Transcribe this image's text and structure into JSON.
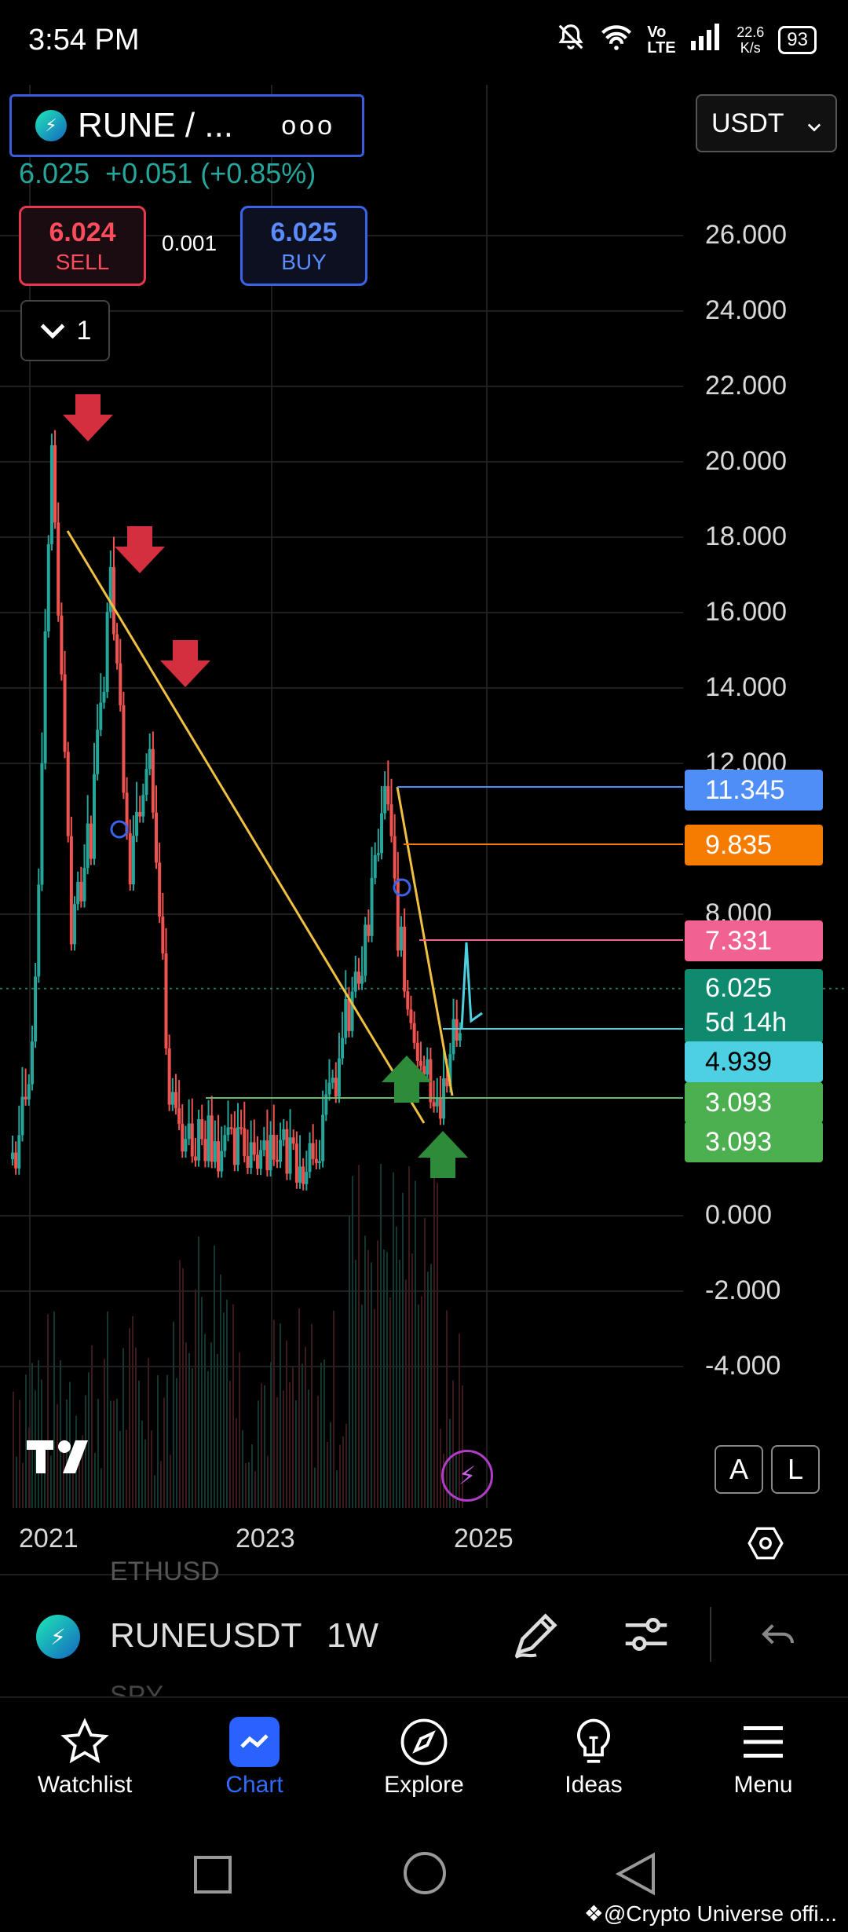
{
  "status_bar": {
    "time": "3:54 PM",
    "speed_value": "22.6",
    "speed_unit": "K/s",
    "network": "Vo LTE",
    "battery": "93"
  },
  "symbol": {
    "name": "RUNE / ...",
    "more": "ooo",
    "price": "6.025",
    "change": "+0.051 (+0.85%)"
  },
  "trade": {
    "sell_price": "6.024",
    "sell_label": "SELL",
    "spread": "0.001",
    "buy_price": "6.025",
    "buy_label": "BUY"
  },
  "collapse": {
    "count": "1"
  },
  "currency": {
    "selected": "USDT"
  },
  "chart_data": {
    "type": "line",
    "title": "",
    "y_ticks": [
      "26.000",
      "24.000",
      "22.000",
      "20.000",
      "18.000",
      "16.000",
      "14.000",
      "12.000",
      "8.000",
      "0.000",
      "-2.000",
      "-4.000"
    ],
    "x_ticks": [
      "2021",
      "2023",
      "2025"
    ],
    "ylim": [
      -6,
      28
    ],
    "series": [
      {
        "x": [
          "2021-01",
          "2021-03",
          "2021-05",
          "2021-07",
          "2021-09",
          "2021-11",
          "2022-01",
          "2022-03",
          "2022-05",
          "2022-07",
          "2022-09",
          "2022-11",
          "2023-01",
          "2023-03",
          "2023-05",
          "2023-07",
          "2023-09",
          "2023-11",
          "2024-01",
          "2024-03",
          "2024-05",
          "2024-07",
          "2024-09",
          "2024-11"
        ],
        "y": [
          1.5,
          4,
          20.5,
          8,
          10,
          17,
          9.5,
          13,
          3,
          2,
          2.3,
          1.6,
          1.8,
          2,
          1.7,
          1.6,
          2.5,
          5,
          7,
          11.3,
          6,
          4,
          3.1,
          6.025
        ]
      }
    ],
    "price_labels": [
      {
        "value": "11.345",
        "color": "#4f8ef7"
      },
      {
        "value": "9.835",
        "color": "#f57c00"
      },
      {
        "value": "7.331",
        "color": "#f06292"
      },
      {
        "value": "6.025",
        "sub": "5d 14h",
        "color": "#0f8a6e"
      },
      {
        "value": "4.939",
        "color": "#4dd0e1"
      },
      {
        "value": "3.093",
        "color": "#4caf50"
      },
      {
        "value": "3.093",
        "color": "#4caf50"
      }
    ],
    "grid": true
  },
  "chart_controls": {
    "auto": "A",
    "log": "L"
  },
  "bottom_bar": {
    "symbol": "RUNEUSDT",
    "interval": "1W",
    "ghost_top": "ETHUSD",
    "ghost_bottom": "SPY"
  },
  "nav": [
    {
      "label": "Watchlist",
      "icon": "star-icon"
    },
    {
      "label": "Chart",
      "icon": "chart-icon",
      "active": true
    },
    {
      "label": "Explore",
      "icon": "compass-icon"
    },
    {
      "label": "Ideas",
      "icon": "bulb-icon"
    },
    {
      "label": "Menu",
      "icon": "menu-icon"
    }
  ],
  "watermark": "@Crypto Universe offi..."
}
